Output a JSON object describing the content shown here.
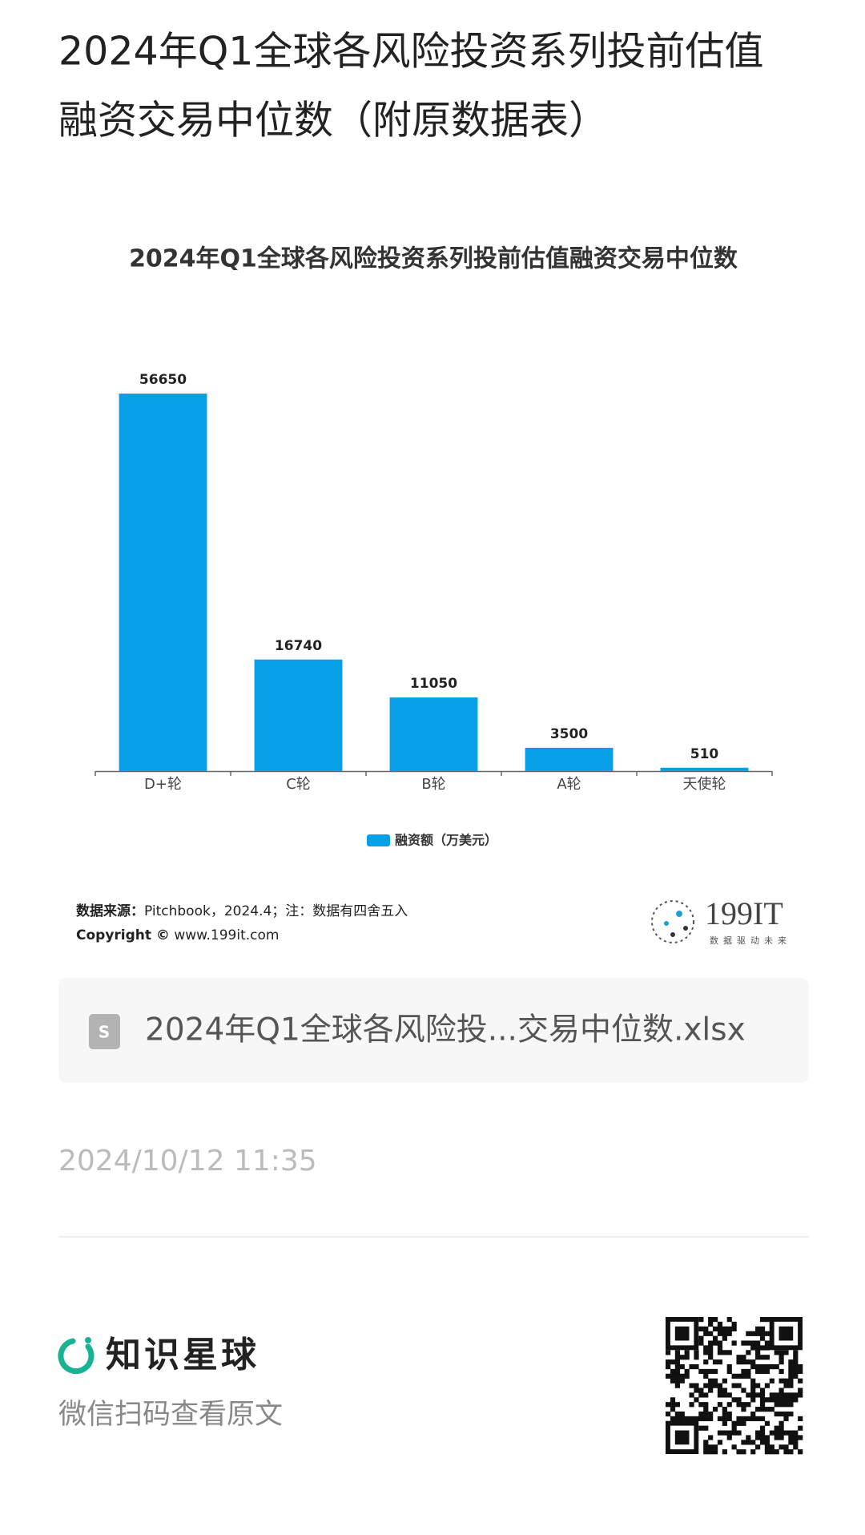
{
  "header": {
    "title_line1": "2024年Q1全球各风险投资系列投前估值",
    "title_line2": "融资交易中位数（附原数据表）"
  },
  "chart_data": {
    "type": "bar",
    "title": "2024年Q1全球各风险投资系列投前估值融资交易中位数",
    "categories": [
      "D+轮",
      "C轮",
      "B轮",
      "A轮",
      "天使轮"
    ],
    "series": [
      {
        "name": "融资额（万美元）",
        "color": "#07a0e6",
        "values": [
          56650,
          16740,
          11050,
          3500,
          510
        ]
      }
    ],
    "legend": "bottom"
  },
  "source": {
    "label": "数据来源：",
    "text": "Pitchbook，2024.4；注：数据有四舍五入",
    "copyright_label": "Copyright ©",
    "copyright_text": " www.199it.com"
  },
  "logo": {
    "name": "199IT",
    "slogan": "数据驱动未来"
  },
  "attachment": {
    "filename": "2024年Q1全球各风险投...交易中位数.xlsx"
  },
  "date": "2024/10/12 11:35",
  "footer": {
    "brand": "知识星球",
    "hint": "微信扫码查看原文"
  }
}
